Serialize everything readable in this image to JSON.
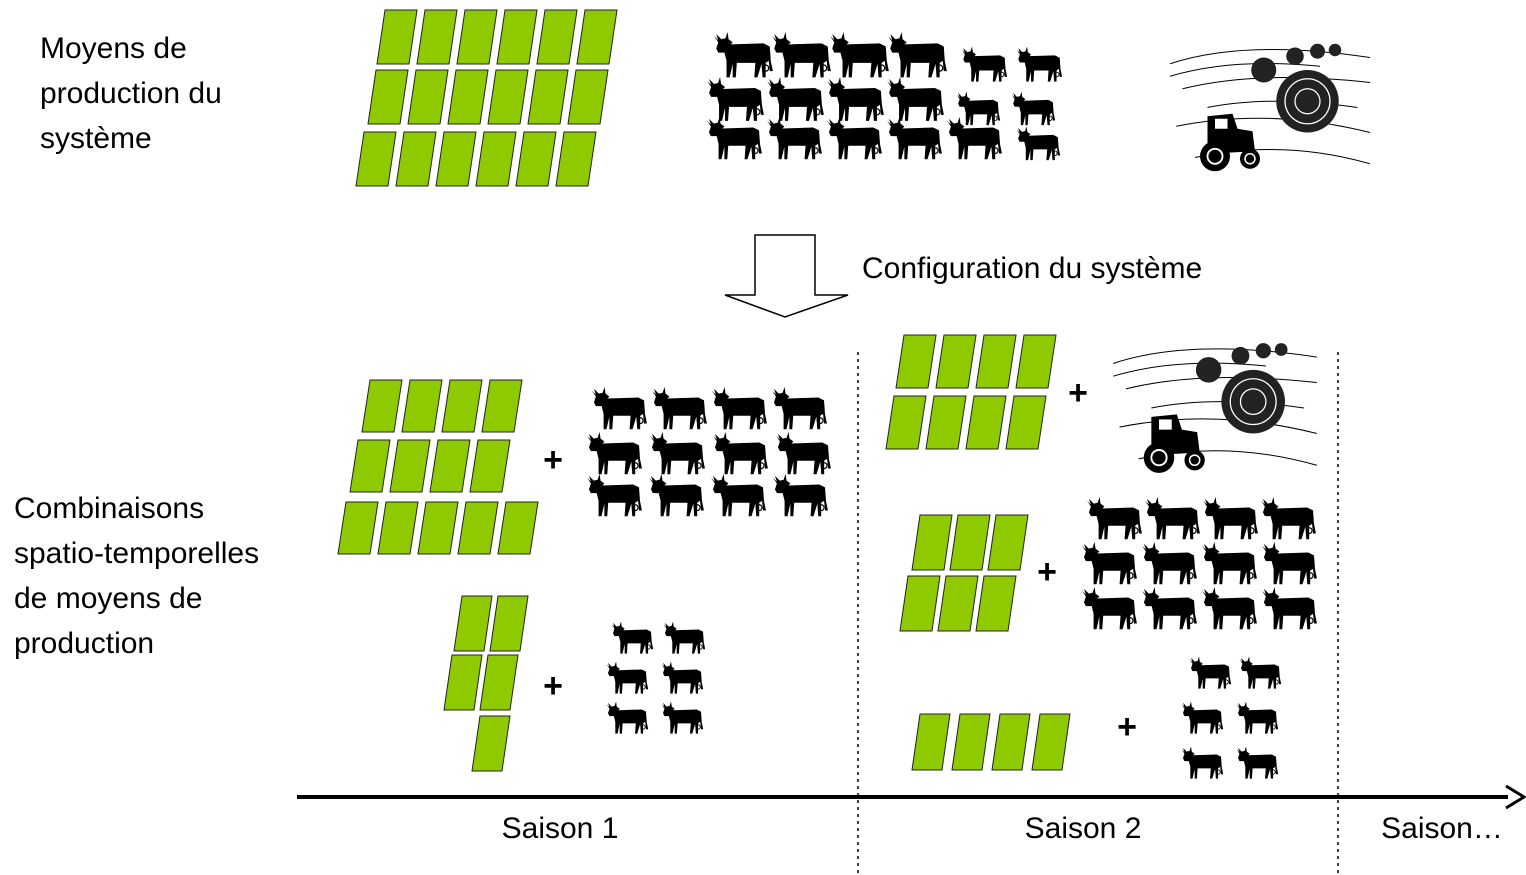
{
  "header": {
    "lines": [
      "Moyens de",
      "production du",
      "système"
    ]
  },
  "configuration": "Configuration du système",
  "combinations": {
    "lines": [
      "Combinaisons",
      "spatio-temporelles",
      "de moyens de",
      "production"
    ]
  },
  "plus_signs": [
    "+",
    "+",
    "+",
    "+",
    "+"
  ],
  "seasons": [
    "Saison 1",
    "Saison 2",
    "Saison…"
  ]
}
